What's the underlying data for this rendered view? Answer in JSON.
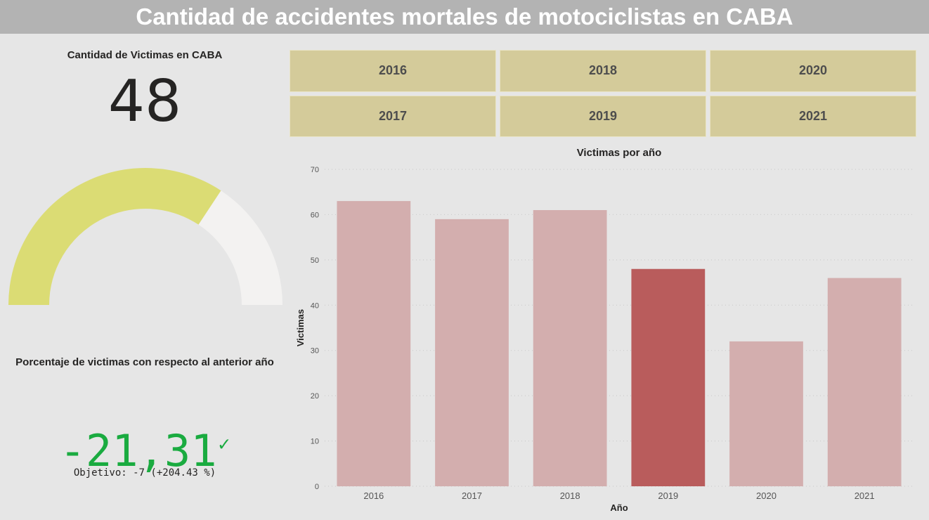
{
  "header": {
    "title": "Cantidad de accidentes mortales de motociclistas en CABA"
  },
  "kpi": {
    "label": "Cantidad de Victimas en CABA",
    "value": "48"
  },
  "gauge": {
    "value": 48,
    "min": 0,
    "max": 70,
    "fill_color": "#dbdc74",
    "track_color": "#f3f2f1"
  },
  "percent_card": {
    "label": "Porcentaje de victimas con respecto al anterior año",
    "value": "-21,31",
    "check": "✓",
    "target": "Objetivo: -7 (+204.43 %)",
    "color": "#1aab40"
  },
  "slicer": {
    "years": [
      "2016",
      "2018",
      "2020",
      "2017",
      "2019",
      "2021"
    ]
  },
  "chart_data": {
    "type": "bar",
    "title": "Victimas por año",
    "xlabel": "Año",
    "ylabel": "Victimas",
    "categories": [
      "2016",
      "2017",
      "2018",
      "2019",
      "2020",
      "2021"
    ],
    "values": [
      63,
      59,
      61,
      48,
      32,
      46
    ],
    "ylim": [
      0,
      70
    ],
    "yticks": [
      0,
      10,
      20,
      30,
      40,
      50,
      60,
      70
    ],
    "highlight": "2019",
    "bar_color": "#d3aeae",
    "highlight_color": "#b95c5c",
    "grid": true
  }
}
